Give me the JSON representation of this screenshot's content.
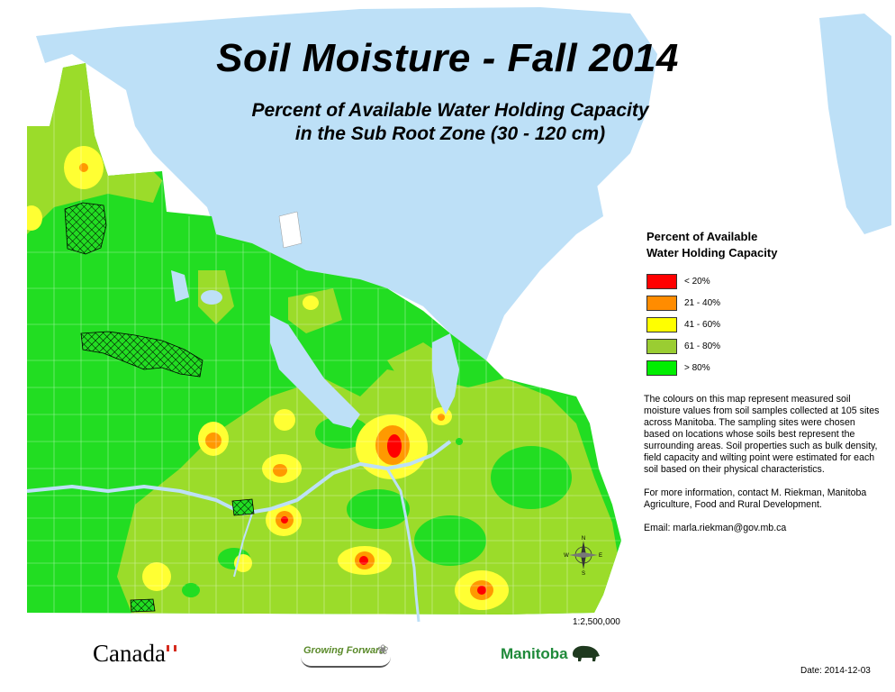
{
  "title": "Soil Moisture - Fall 2014",
  "subtitle_line1": "Percent of Available Water Holding Capacity",
  "subtitle_line2": "in the Sub Root Zone (30 - 120 cm)",
  "legend": {
    "title_line1": "Percent of Available",
    "title_line2": "Water Holding Capacity",
    "items": [
      {
        "label": "< 20%",
        "color": "#ff0000"
      },
      {
        "label": "21 - 40%",
        "color": "#ff8c00"
      },
      {
        "label": "41 - 60%",
        "color": "#ffff00"
      },
      {
        "label": "61 - 80%",
        "color": "#9acd32"
      },
      {
        "label": "> 80%",
        "color": "#00ee00"
      }
    ]
  },
  "description": "The colours on this map represent measured soil moisture values from soil samples collected at 105 sites across Manitoba.  The sampling sites were chosen based on locations whose soils best represent the surrounding areas.  Soil properties such as bulk density, field capacity and wilting point were estimated for each soil based on their physical characteristics.",
  "contact": "For more information, contact M. Riekman, Manitoba Agriculture, Food and Rural Development.",
  "email": "Email: marla.riekman@gov.mb.ca",
  "scale": "1:2,500,000",
  "date": "Date: 2014-12-03",
  "logos": {
    "canada": "Canada",
    "growing_forward": "Growing Forward",
    "manitoba": "Manitoba"
  },
  "compass": {
    "n": "N",
    "s": "S",
    "e": "E",
    "w": "W"
  },
  "colors": {
    "water": "#bde0f7",
    "green_high": "#22dd22",
    "green_mid": "#9bdc2a",
    "yellow": "#ffff33",
    "orange": "#ff9900",
    "red": "#ff0000"
  }
}
